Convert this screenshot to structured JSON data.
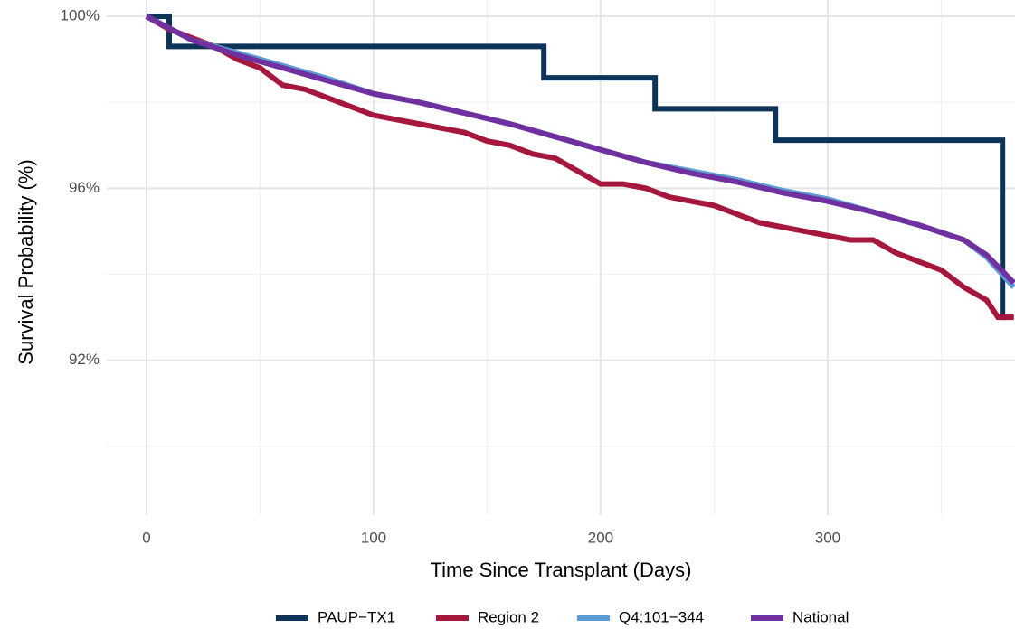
{
  "chart_data": {
    "type": "line",
    "x_label": "Time Since Transplant (Days)",
    "y_label": "Survival Probability (%)",
    "xlim": [
      -17.5,
      382.5
    ],
    "ylim": [
      88.4,
      100.38
    ],
    "xticks": [
      0,
      100,
      200,
      300
    ],
    "x_minor_gridlines": [
      50,
      150,
      250,
      350
    ],
    "yticks": [
      {
        "value": 92,
        "label": "92%"
      },
      {
        "value": 96,
        "label": "96%"
      },
      {
        "value": 100,
        "label": "100%"
      }
    ],
    "y_minor_gridlines": [
      90,
      94,
      98
    ],
    "grid": true,
    "legend": "bottom",
    "series": [
      {
        "name": "PAUP−TX1",
        "color": "#0d3358",
        "step": true,
        "x": [
          0,
          10,
          175,
          224,
          277,
          377,
          379
        ],
        "values": [
          100,
          99.3,
          98.57,
          97.85,
          97.12,
          93.0,
          93.0
        ]
      },
      {
        "name": "Region 2",
        "color": "#a6173d",
        "step": false,
        "x": [
          0,
          10,
          20,
          30,
          40,
          50,
          60,
          70,
          80,
          90,
          100,
          110,
          120,
          130,
          140,
          150,
          160,
          170,
          180,
          190,
          200,
          210,
          220,
          230,
          240,
          250,
          260,
          270,
          280,
          290,
          300,
          310,
          320,
          330,
          340,
          350,
          360,
          370,
          375,
          382
        ],
        "values": [
          100,
          99.7,
          99.5,
          99.3,
          99.0,
          98.8,
          98.4,
          98.3,
          98.1,
          97.9,
          97.7,
          97.6,
          97.5,
          97.4,
          97.3,
          97.1,
          97.0,
          96.8,
          96.7,
          96.4,
          96.1,
          96.1,
          96.0,
          95.8,
          95.7,
          95.6,
          95.4,
          95.2,
          95.1,
          95.0,
          94.9,
          94.8,
          94.8,
          94.5,
          94.3,
          94.1,
          93.7,
          93.4,
          93.0,
          93.0
        ]
      },
      {
        "name": "Q4:101−344",
        "color": "#5b9bd5",
        "step": false,
        "x": [
          0,
          20,
          40,
          60,
          80,
          100,
          120,
          140,
          160,
          180,
          200,
          220,
          240,
          260,
          280,
          300,
          320,
          340,
          360,
          370,
          382
        ],
        "values": [
          100,
          99.45,
          99.15,
          98.85,
          98.55,
          98.2,
          98.0,
          97.75,
          97.5,
          97.2,
          96.9,
          96.6,
          96.4,
          96.2,
          95.95,
          95.75,
          95.45,
          95.15,
          94.8,
          94.4,
          93.7
        ]
      },
      {
        "name": "National",
        "color": "#7030a0",
        "step": false,
        "x": [
          0,
          20,
          40,
          60,
          80,
          100,
          120,
          140,
          160,
          180,
          200,
          220,
          240,
          260,
          280,
          300,
          320,
          340,
          360,
          370,
          382
        ],
        "values": [
          100,
          99.45,
          99.1,
          98.8,
          98.5,
          98.2,
          98.0,
          97.75,
          97.5,
          97.2,
          96.9,
          96.6,
          96.35,
          96.15,
          95.9,
          95.7,
          95.45,
          95.15,
          94.8,
          94.45,
          93.8
        ]
      }
    ]
  }
}
